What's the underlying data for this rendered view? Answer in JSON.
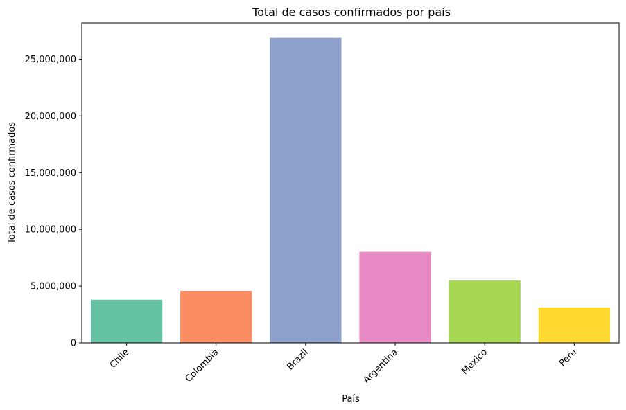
{
  "chart_data": {
    "type": "bar",
    "title": "Total de casos confirmados por país",
    "xlabel": "País",
    "ylabel": "Total de casos confirmados",
    "categories": [
      "Chile",
      "Colombia",
      "Brazil",
      "Argentina",
      "Mexico",
      "Peru"
    ],
    "values": [
      3800000,
      4580000,
      26880000,
      8020000,
      5490000,
      3120000
    ],
    "colors": [
      "#66c2a5",
      "#fc8d62",
      "#8da0cb",
      "#e78ac3",
      "#a6d854",
      "#ffd92f"
    ],
    "ylim": [
      0,
      28200000
    ],
    "yticks": [
      0,
      5000000,
      10000000,
      15000000,
      20000000,
      25000000
    ],
    "ytick_labels": [
      "0",
      "5,000,000",
      "10,000,000",
      "15,000,000",
      "20,000,000",
      "25,000,000"
    ],
    "grid": false,
    "legend": "none",
    "xtick_rotation_deg": 45
  }
}
